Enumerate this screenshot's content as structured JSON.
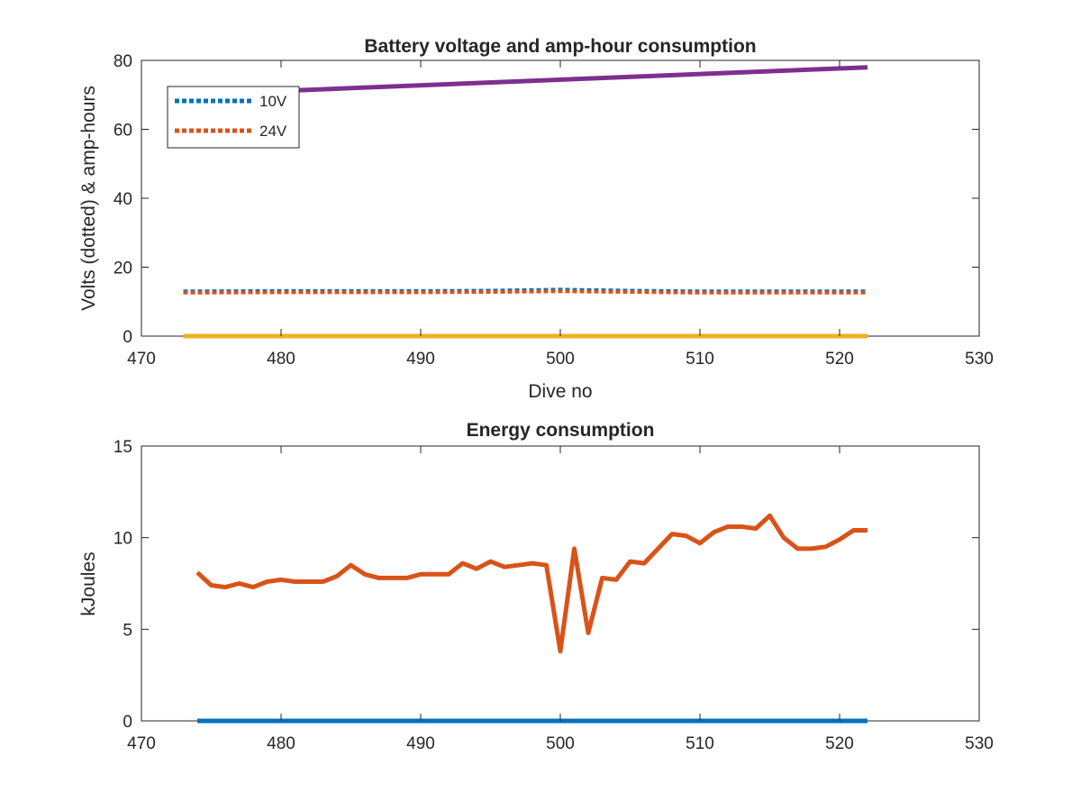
{
  "colors": {
    "blue": "#0072BD",
    "orange": "#D95319",
    "yellow": "#EDB120",
    "purple": "#7E2F8E",
    "axis": "#262626"
  },
  "chart_data": [
    {
      "type": "line",
      "title": "Battery voltage and amp-hour consumption",
      "xlabel": "Dive no",
      "ylabel": "Volts (dotted) & amp-hours",
      "xlim": [
        470,
        530
      ],
      "ylim": [
        0,
        80
      ],
      "xticks": [
        470,
        480,
        490,
        500,
        510,
        520,
        530
      ],
      "yticks": [
        0,
        20,
        40,
        60,
        80
      ],
      "grid": false,
      "legend": {
        "location": "top-left",
        "entries": [
          "10V",
          "24V"
        ]
      },
      "series": [
        {
          "name": "10V",
          "style": "dotted",
          "color": "blue",
          "x": [
            473,
            480,
            490,
            495,
            500,
            505,
            510,
            515,
            522
          ],
          "y": [
            13.0,
            13.1,
            13.1,
            13.2,
            13.5,
            13.2,
            13.0,
            13.0,
            13.0
          ]
        },
        {
          "name": "24V",
          "style": "dotted",
          "color": "orange",
          "x": [
            473,
            480,
            490,
            495,
            500,
            505,
            510,
            515,
            522
          ],
          "y": [
            12.6,
            12.7,
            12.7,
            12.8,
            13.0,
            12.8,
            12.6,
            12.6,
            12.6
          ]
        },
        {
          "style": "solid",
          "color": "yellow",
          "x": [
            473,
            522
          ],
          "y": [
            0,
            0
          ]
        },
        {
          "style": "solid",
          "color": "purple",
          "x": [
            473,
            522
          ],
          "y": [
            70,
            78
          ]
        }
      ]
    },
    {
      "type": "line",
      "title": "Energy consumption",
      "xlabel": "",
      "ylabel": "kJoules",
      "xlim": [
        470,
        530
      ],
      "ylim": [
        0,
        15
      ],
      "xticks": [
        470,
        480,
        490,
        500,
        510,
        520,
        530
      ],
      "yticks": [
        0,
        5,
        10,
        15
      ],
      "grid": false,
      "series": [
        {
          "style": "solid",
          "color": "blue",
          "x": [
            474,
            522
          ],
          "y": [
            0,
            0
          ]
        },
        {
          "style": "solid",
          "color": "orange",
          "x": [
            474,
            475,
            476,
            477,
            478,
            479,
            480,
            481,
            482,
            483,
            484,
            485,
            486,
            487,
            488,
            489,
            490,
            491,
            492,
            493,
            494,
            495,
            496,
            497,
            498,
            499,
            500,
            501,
            502,
            503,
            504,
            505,
            506,
            507,
            508,
            509,
            510,
            511,
            512,
            513,
            514,
            515,
            516,
            517,
            518,
            519,
            520,
            521,
            522
          ],
          "y": [
            8.1,
            7.4,
            7.3,
            7.5,
            7.3,
            7.6,
            7.7,
            7.6,
            7.6,
            7.6,
            7.9,
            8.5,
            8.0,
            7.8,
            7.8,
            7.8,
            8.0,
            8.0,
            8.0,
            8.6,
            8.3,
            8.7,
            8.4,
            8.5,
            8.6,
            8.5,
            3.8,
            9.4,
            4.8,
            7.8,
            7.7,
            8.7,
            8.6,
            9.4,
            10.2,
            10.1,
            9.7,
            10.3,
            10.6,
            10.6,
            10.5,
            11.2,
            10.0,
            9.4,
            9.4,
            9.5,
            9.9,
            10.4,
            10.4
          ]
        }
      ]
    }
  ]
}
